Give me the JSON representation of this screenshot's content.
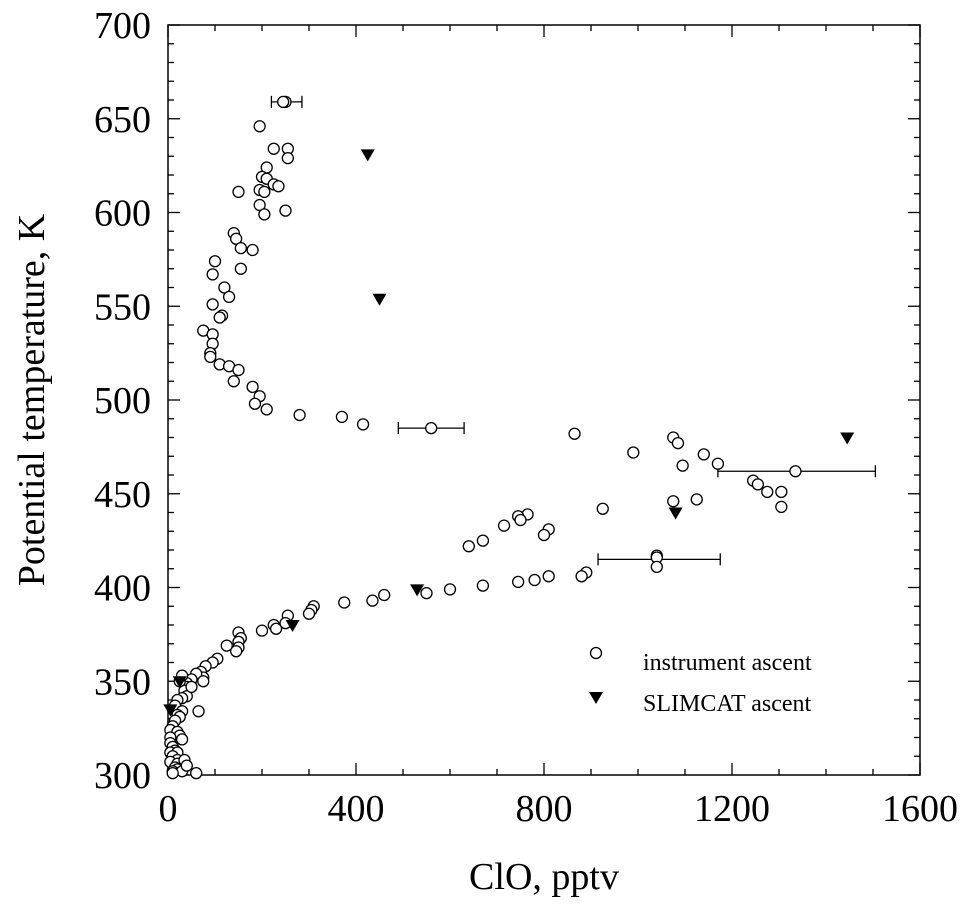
{
  "chart_data": {
    "type": "scatter",
    "xlabel": "ClO, pptv",
    "ylabel": "Potential temperature, K",
    "xlim": [
      0,
      1600
    ],
    "ylim": [
      300,
      700
    ],
    "xticks": [
      "0",
      "400",
      "800",
      "1200",
      "1600"
    ],
    "yticks": [
      "300",
      "350",
      "400",
      "450",
      "500",
      "550",
      "600",
      "650",
      "700"
    ],
    "grid": false,
    "legend_position": "lower-right",
    "series": [
      {
        "name": "instrument ascent",
        "marker": "open-circle",
        "color": "#000000",
        "points": [
          [
            195,
            646
          ],
          [
            250,
            659
          ],
          [
            245,
            659
          ],
          [
            255,
            634
          ],
          [
            225,
            634
          ],
          [
            255,
            629
          ],
          [
            210,
            624
          ],
          [
            200,
            619
          ],
          [
            210,
            618
          ],
          [
            225,
            615
          ],
          [
            235,
            614
          ],
          [
            195,
            612
          ],
          [
            205,
            611
          ],
          [
            150,
            611
          ],
          [
            195,
            604
          ],
          [
            250,
            601
          ],
          [
            205,
            599
          ],
          [
            140,
            589
          ],
          [
            145,
            586
          ],
          [
            155,
            581
          ],
          [
            180,
            580
          ],
          [
            155,
            570
          ],
          [
            100,
            574
          ],
          [
            95,
            567
          ],
          [
            120,
            560
          ],
          [
            130,
            555
          ],
          [
            95,
            551
          ],
          [
            115,
            545
          ],
          [
            110,
            544
          ],
          [
            75,
            537
          ],
          [
            95,
            535
          ],
          [
            95,
            530
          ],
          [
            90,
            525
          ],
          [
            90,
            523
          ],
          [
            110,
            519
          ],
          [
            130,
            518
          ],
          [
            150,
            516
          ],
          [
            140,
            510
          ],
          [
            180,
            507
          ],
          [
            195,
            502
          ],
          [
            185,
            498
          ],
          [
            210,
            495
          ],
          [
            280,
            492
          ],
          [
            370,
            491
          ],
          [
            415,
            487
          ],
          [
            560,
            485
          ],
          [
            865,
            482
          ],
          [
            1075,
            480
          ],
          [
            1085,
            477
          ],
          [
            990,
            472
          ],
          [
            1140,
            471
          ],
          [
            1170,
            466
          ],
          [
            1095,
            465
          ],
          [
            1335,
            462
          ],
          [
            1245,
            457
          ],
          [
            1255,
            455
          ],
          [
            1275,
            451
          ],
          [
            1305,
            451
          ],
          [
            1305,
            443
          ],
          [
            1075,
            446
          ],
          [
            1125,
            447
          ],
          [
            925,
            442
          ],
          [
            765,
            439
          ],
          [
            745,
            438
          ],
          [
            750,
            436
          ],
          [
            715,
            433
          ],
          [
            810,
            431
          ],
          [
            800,
            428
          ],
          [
            670,
            425
          ],
          [
            640,
            422
          ],
          [
            1040,
            417
          ],
          [
            1040,
            416
          ],
          [
            1040,
            411
          ],
          [
            890,
            408
          ],
          [
            880,
            406
          ],
          [
            810,
            406
          ],
          [
            780,
            404
          ],
          [
            745,
            403
          ],
          [
            670,
            401
          ],
          [
            600,
            399
          ],
          [
            550,
            397
          ],
          [
            460,
            396
          ],
          [
            435,
            393
          ],
          [
            375,
            392
          ],
          [
            310,
            390
          ],
          [
            305,
            388
          ],
          [
            300,
            386
          ],
          [
            255,
            385
          ],
          [
            250,
            381
          ],
          [
            225,
            380
          ],
          [
            230,
            378
          ],
          [
            200,
            377
          ],
          [
            150,
            376
          ],
          [
            155,
            373
          ],
          [
            150,
            371
          ],
          [
            150,
            368
          ],
          [
            145,
            366
          ],
          [
            125,
            369
          ],
          [
            105,
            362
          ],
          [
            95,
            360
          ],
          [
            80,
            358
          ],
          [
            70,
            355
          ],
          [
            75,
            352
          ],
          [
            60,
            354
          ],
          [
            50,
            351
          ],
          [
            40,
            349
          ],
          [
            40,
            347
          ],
          [
            35,
            345
          ],
          [
            40,
            342
          ],
          [
            30,
            341
          ],
          [
            20,
            340
          ],
          [
            15,
            337
          ],
          [
            30,
            334
          ],
          [
            20,
            332
          ],
          [
            25,
            331
          ],
          [
            15,
            329
          ],
          [
            65,
            334
          ],
          [
            10,
            326
          ],
          [
            5,
            324
          ],
          [
            20,
            323
          ],
          [
            25,
            321
          ],
          [
            5,
            320
          ],
          [
            30,
            319
          ],
          [
            5,
            317
          ],
          [
            10,
            315
          ],
          [
            15,
            313
          ],
          [
            5,
            312
          ],
          [
            20,
            312
          ],
          [
            10,
            310
          ],
          [
            20,
            308
          ],
          [
            5,
            307
          ],
          [
            20,
            306
          ],
          [
            15,
            304
          ],
          [
            20,
            303
          ],
          [
            10,
            302
          ],
          [
            30,
            302
          ],
          [
            10,
            301
          ],
          [
            60,
            301
          ],
          [
            35,
            308
          ],
          [
            40,
            305
          ],
          [
            75,
            350
          ],
          [
            25,
            350
          ],
          [
            30,
            353
          ],
          [
            50,
            347
          ]
        ]
      },
      {
        "name": "SLIMCAT ascent",
        "marker": "filled-triangle-down",
        "color": "#000000",
        "points": [
          [
            425,
            631
          ],
          [
            450,
            554
          ],
          [
            1445,
            480
          ],
          [
            1080,
            440
          ],
          [
            530,
            399
          ],
          [
            265,
            380
          ],
          [
            25,
            350
          ],
          [
            5,
            335
          ]
        ]
      }
    ],
    "error_bars": [
      {
        "y": 659,
        "x_low": 220,
        "x_high": 285
      },
      {
        "y": 485,
        "x_low": 490,
        "x_high": 630
      },
      {
        "y": 462,
        "x_low": 1170,
        "x_high": 1505
      },
      {
        "y": 415,
        "x_low": 915,
        "x_high": 1175
      }
    ]
  }
}
